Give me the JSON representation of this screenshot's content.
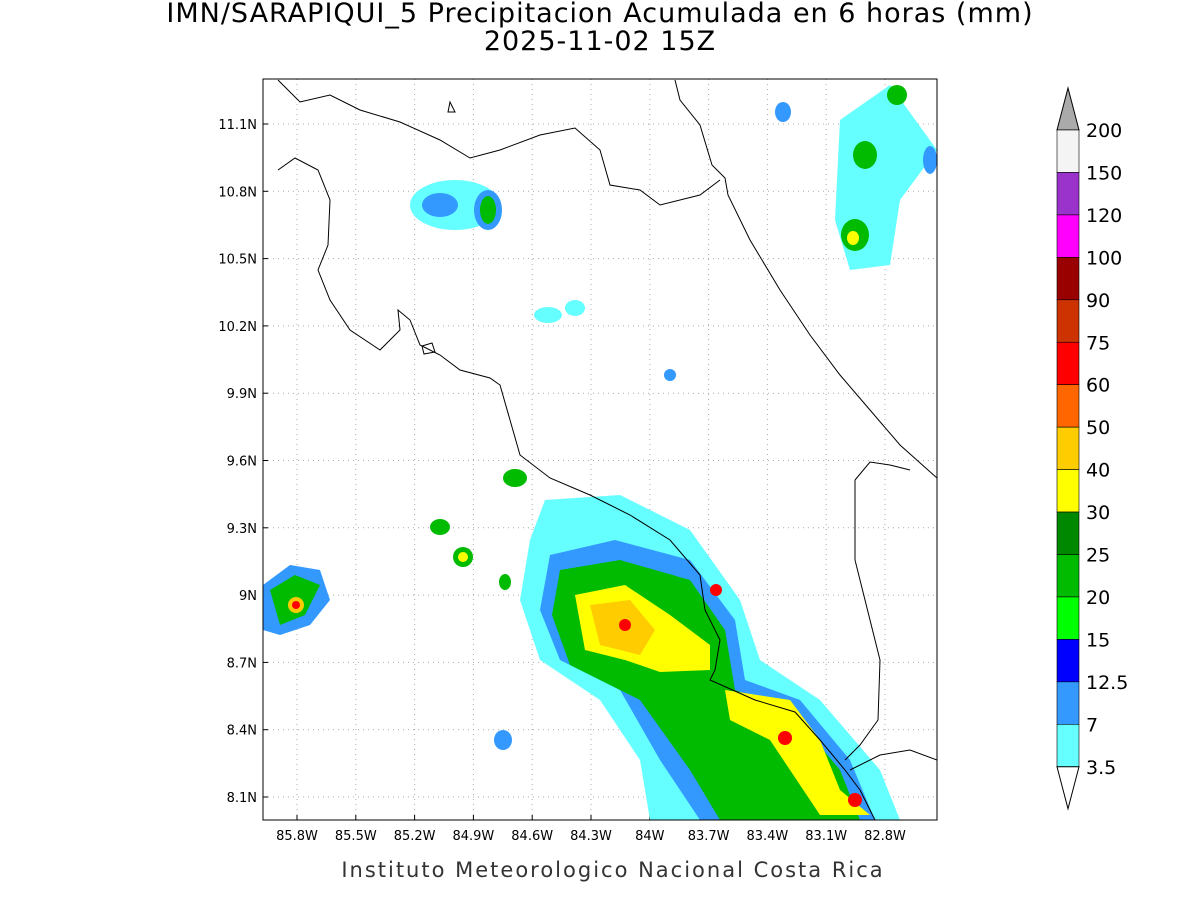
{
  "title": "IMN/SARAPIQUI_5 Precipitacion Acumulada en 6 horas (mm)",
  "subtitle": "2025-11-02 15Z",
  "lat_labels": [
    "11.1N",
    "10.8N",
    "10.5N",
    "10.2N",
    "9.9N",
    "9.6N",
    "9.3N",
    "9N",
    "8.7N",
    "8.4N",
    "8.1N"
  ],
  "lon_labels": [
    "85.8W",
    "85.5W",
    "85.2W",
    "84.9W",
    "84.6W",
    "84.3W",
    "84W",
    "83.7W",
    "83.4W",
    "83.1W",
    "82.8W"
  ],
  "colorbar": {
    "levels": [
      200,
      150,
      120,
      100,
      90,
      75,
      60,
      50,
      40,
      30,
      25,
      20,
      15,
      12.5,
      7,
      3.5
    ],
    "interval_colors": [
      "#f4f4f4",
      "#9a33cc",
      "#ff00ff",
      "#990000",
      "#cc3300",
      "#ff0000",
      "#ff6600",
      "#ffcc00",
      "#ffff00",
      "#008800",
      "#00bb00",
      "#00ff00",
      "#0000ff",
      "#3399ff",
      "#66ffff"
    ],
    "over_color": "#aaaaaa",
    "under_color": "#ffffff"
  },
  "footer": "Instituto Meteorologico Nacional Costa Rica"
}
